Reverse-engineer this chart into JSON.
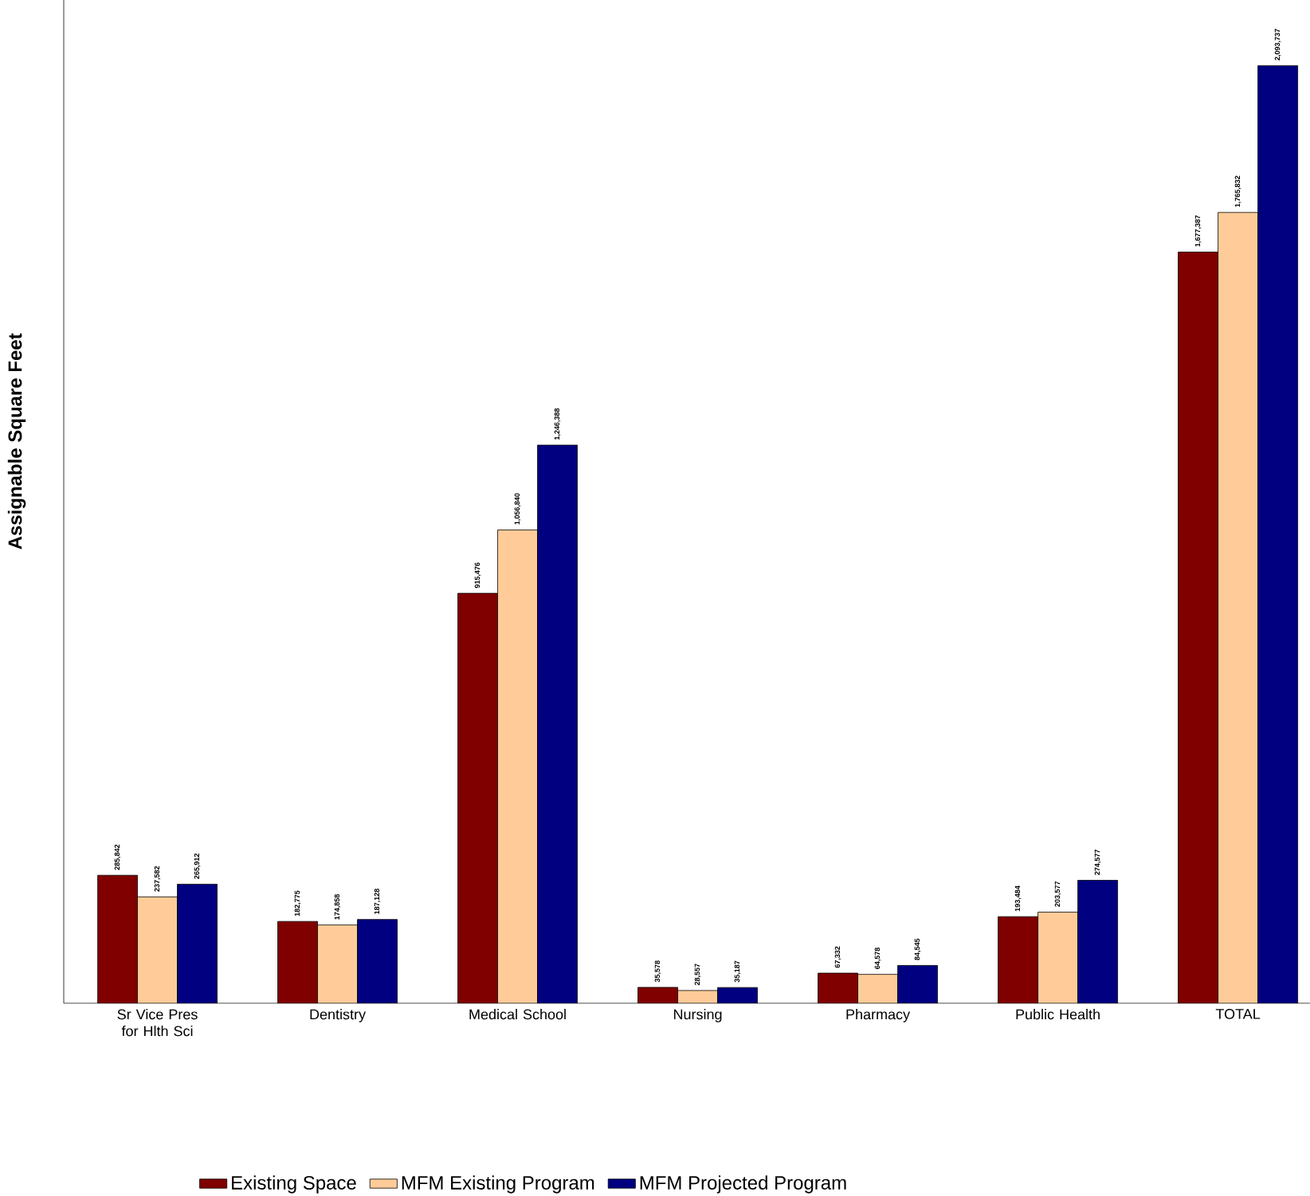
{
  "chart_data": {
    "type": "bar",
    "ylabel": "Assignable Square Feet",
    "categories": [
      "Sr Vice Pres for Hlth Sci",
      "Dentistry",
      "Medical School",
      "Nursing",
      "Pharmacy",
      "Public Health",
      "TOTAL"
    ],
    "series": [
      {
        "name": "Existing Space",
        "color": "#800000",
        "values": [
          285842,
          182775,
          915476,
          35578,
          67332,
          193484,
          1677387
        ],
        "value_labels": [
          "285,842",
          "182,775",
          "915,476",
          "35,578",
          "67,332",
          "193,484",
          "1,677,387"
        ]
      },
      {
        "name": "MFM Existing Program",
        "color": "#ffcc99",
        "values": [
          237582,
          174858,
          1056840,
          28557,
          64578,
          203577,
          1765832
        ],
        "value_labels": [
          "237,582",
          "174,858",
          "1,056,840",
          "28,557",
          "64,578",
          "203,577",
          "1,765,832"
        ]
      },
      {
        "name": "MFM Projected Program",
        "color": "#000080",
        "values": [
          265912,
          187128,
          1246388,
          35187,
          84545,
          274577,
          2093737
        ],
        "value_labels": [
          "265,912",
          "187,128",
          "1,246,388",
          "35,187",
          "84,545",
          "274,577",
          "2,093,737"
        ]
      }
    ],
    "legend": "bottom"
  }
}
